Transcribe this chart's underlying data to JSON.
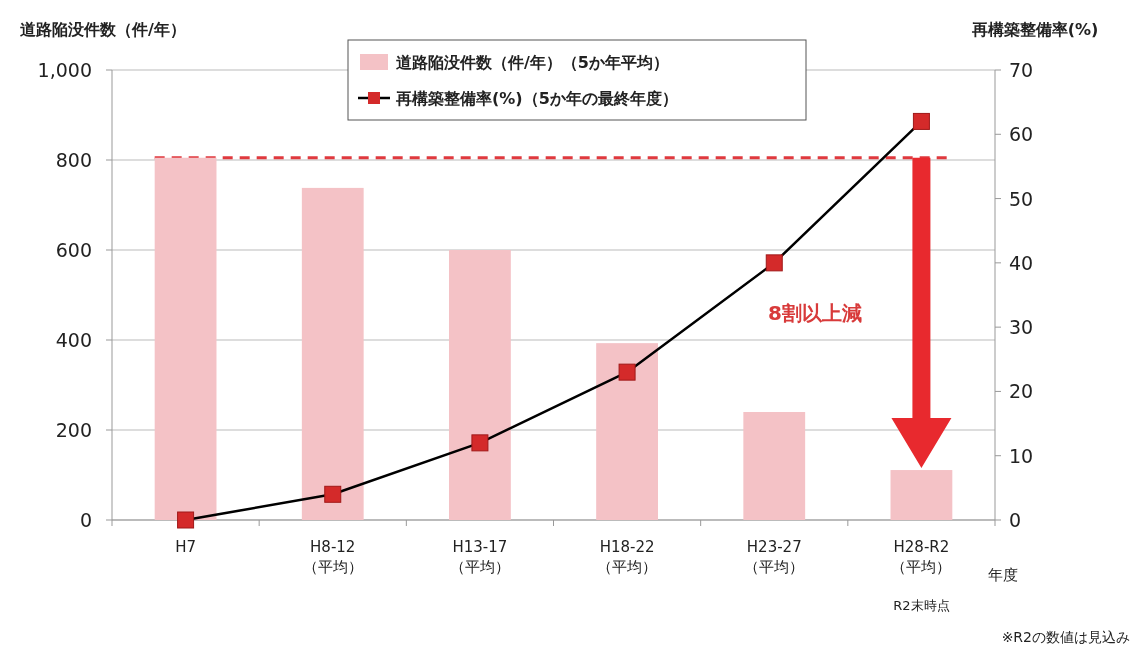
{
  "chart_data": {
    "type": "bar",
    "ylabel": "道路陥没件数（件/年）",
    "y2label": "再構築整備率(%)",
    "xlabel": "年度",
    "categories": [
      "H7",
      "H8-12\n（平均）",
      "H13-17\n（平均）",
      "H18-22\n（平均）",
      "H23-27\n（平均）",
      "H28-R2\n（平均）"
    ],
    "series": [
      {
        "name": "道路陥没件数（件/年）（5か年平均）",
        "color": "#f4c2c6",
        "values": [
          805,
          738,
          600,
          393,
          240,
          111
        ]
      },
      {
        "name": "再構築整備率(%)（5か年の最終年度）",
        "type": "line",
        "axis": "y2",
        "color": "#d42a2a",
        "marker": "square",
        "values": [
          0,
          4,
          12,
          23,
          40,
          62
        ]
      }
    ],
    "ylim": [
      0,
      1000
    ],
    "yticks": [
      0,
      200,
      400,
      600,
      800,
      {
        "value": 1000,
        "label": "1,000"
      }
    ],
    "y2lim": [
      0,
      70
    ],
    "y2ticks": [
      0,
      10,
      20,
      30,
      40,
      50,
      60,
      70
    ],
    "grid": "y",
    "legend": "top",
    "ref_lines": [
      {
        "axis": "y",
        "value": 805,
        "color": "#e0393e",
        "line_style": "dashed"
      }
    ],
    "annotations": [
      "8割以上減",
      "R2末時点",
      "※R2の数値は見込み"
    ]
  }
}
